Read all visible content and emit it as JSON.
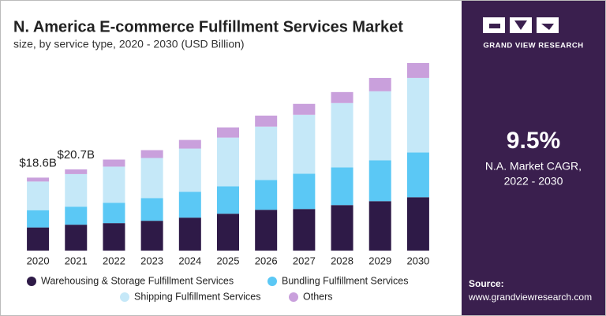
{
  "chart_data": {
    "type": "stacked_bar",
    "title": "N. America E-commerce Fulfillment Services Market",
    "subtitle": "size, by service type, 2020 - 2030 (USD Billion)",
    "categories": [
      "2020",
      "2021",
      "2022",
      "2023",
      "2024",
      "2025",
      "2026",
      "2027",
      "2028",
      "2029",
      "2030"
    ],
    "series": [
      {
        "name": "Warehousing & Storage Fulfillment Services",
        "color": "#2e1a47",
        "values": [
          5.9,
          6.6,
          7.0,
          7.6,
          8.4,
          9.4,
          10.4,
          10.6,
          11.6,
          12.6,
          13.6
        ]
      },
      {
        "name": "Bundling Fulfillment Services",
        "color": "#5bc8f5",
        "values": [
          4.4,
          4.6,
          5.2,
          5.8,
          6.6,
          7.0,
          7.6,
          9.0,
          9.6,
          10.4,
          11.4
        ]
      },
      {
        "name": "Shipping Fulfillment Services",
        "color": "#c5e8f8",
        "values": [
          7.3,
          8.3,
          9.2,
          10.2,
          11.0,
          12.4,
          13.6,
          15.0,
          16.4,
          17.6,
          19.0
        ]
      },
      {
        "name": "Others",
        "color": "#c9a0dc",
        "values": [
          1.0,
          1.2,
          1.8,
          2.0,
          2.2,
          2.6,
          2.8,
          2.8,
          2.8,
          3.4,
          3.8
        ]
      }
    ],
    "total_labels": [
      {
        "category": "2020",
        "value": 18.6,
        "label": "$18.6B"
      },
      {
        "category": "2021",
        "value": 20.7,
        "label": "$20.7B"
      }
    ]
  },
  "sidebar": {
    "brand": "GRAND VIEW RESEARCH",
    "cagr": "9.5%",
    "cagr_caption": "N.A. Market CAGR,",
    "cagr_period": "2022 - 2030",
    "source_label": "Source:",
    "source_url": "www.grandviewresearch.com"
  }
}
